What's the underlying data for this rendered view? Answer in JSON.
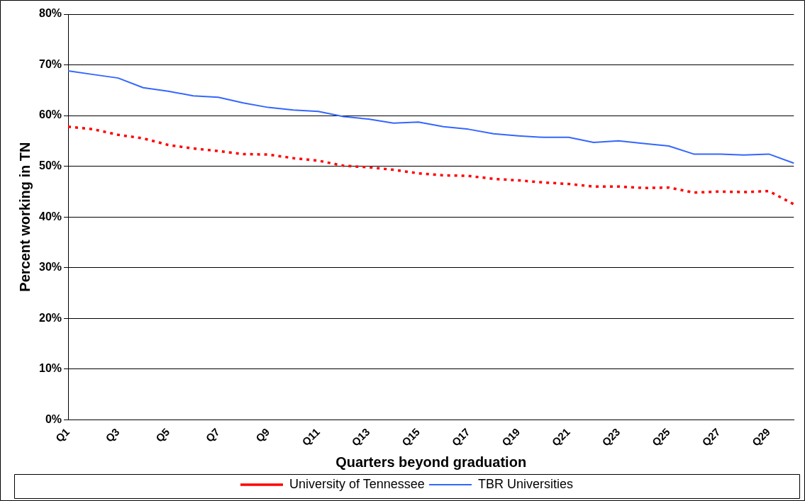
{
  "chart_data": {
    "type": "line",
    "categories": [
      "Q1",
      null,
      "Q3",
      null,
      "Q5",
      null,
      "Q7",
      null,
      "Q9",
      null,
      "Q11",
      null,
      "Q13",
      null,
      "Q15",
      null,
      "Q17",
      null,
      "Q19",
      null,
      "Q21",
      null,
      "Q23",
      null,
      "Q25",
      null,
      "Q27",
      null,
      "Q29",
      null
    ],
    "series": [
      {
        "name": "University of Tennessee",
        "color": "#ff0000",
        "line_style": "dotted",
        "values": [
          57.8,
          57.3,
          56.2,
          55.5,
          54.2,
          53.5,
          53.0,
          52.4,
          52.3,
          51.6,
          51.1,
          50.1,
          49.8,
          49.3,
          48.6,
          48.2,
          48.1,
          47.5,
          47.2,
          46.8,
          46.5,
          46.0,
          46.0,
          45.7,
          45.8,
          44.8,
          45.0,
          44.9,
          45.1,
          42.5
        ]
      },
      {
        "name": "TBR Universities",
        "color": "#3366ff",
        "line_style": "solid",
        "values": [
          68.8,
          68.1,
          67.4,
          65.5,
          64.8,
          63.9,
          63.6,
          62.5,
          61.6,
          61.1,
          60.8,
          59.8,
          59.3,
          58.5,
          58.7,
          57.8,
          57.3,
          56.4,
          56.0,
          55.7,
          55.7,
          54.7,
          55.0,
          54.5,
          54.0,
          52.4,
          52.4,
          52.2,
          52.4,
          50.6
        ]
      }
    ],
    "xlabel": "Quarters beyond graduation",
    "ylabel": "Percent working in TN",
    "ylim": [
      0,
      80
    ],
    "yticks": [
      {
        "value": 0,
        "label": "0%"
      },
      {
        "value": 10,
        "label": "10%"
      },
      {
        "value": 20,
        "label": "20%"
      },
      {
        "value": 30,
        "label": "30%"
      },
      {
        "value": 40,
        "label": "40%"
      },
      {
        "value": 50,
        "label": "50%"
      },
      {
        "value": 60,
        "label": "60%"
      },
      {
        "value": 70,
        "label": "70%"
      },
      {
        "value": 80,
        "label": "80%"
      }
    ],
    "grid": "y",
    "legend": "bottom",
    "marker": "none"
  }
}
